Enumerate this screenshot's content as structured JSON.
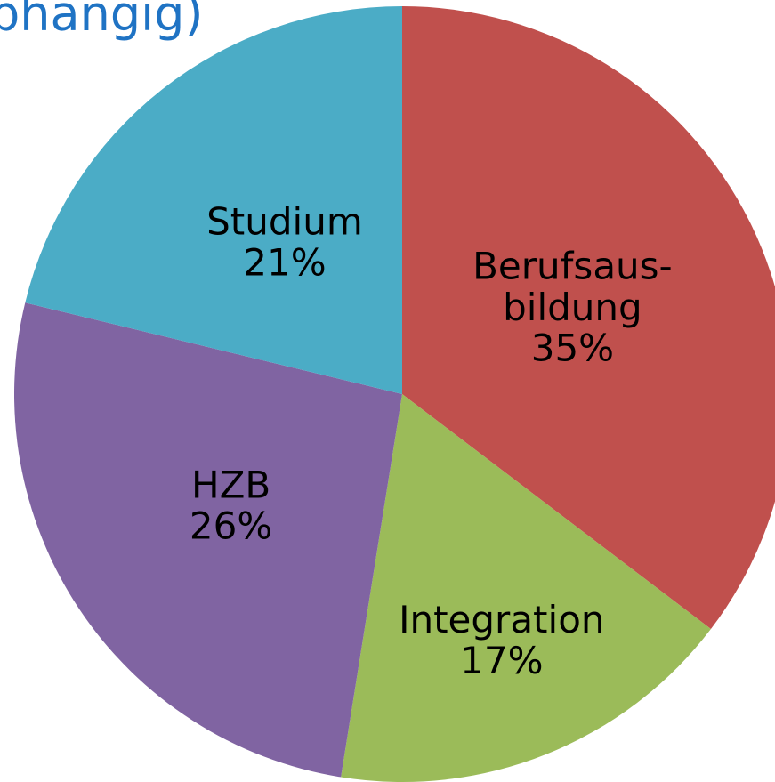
{
  "chart_data": {
    "type": "pie",
    "title": "bhängig)",
    "categories": [
      "Berufsaus-\nbildung",
      "Integration",
      "HZB",
      "Studium"
    ],
    "values": [
      35,
      17,
      26,
      21
    ],
    "value_labels": [
      "35%",
      "17%",
      "26%",
      "21%"
    ],
    "colors": [
      "#c0504d",
      "#9bbb59",
      "#8064a2",
      "#4bacc6"
    ]
  }
}
